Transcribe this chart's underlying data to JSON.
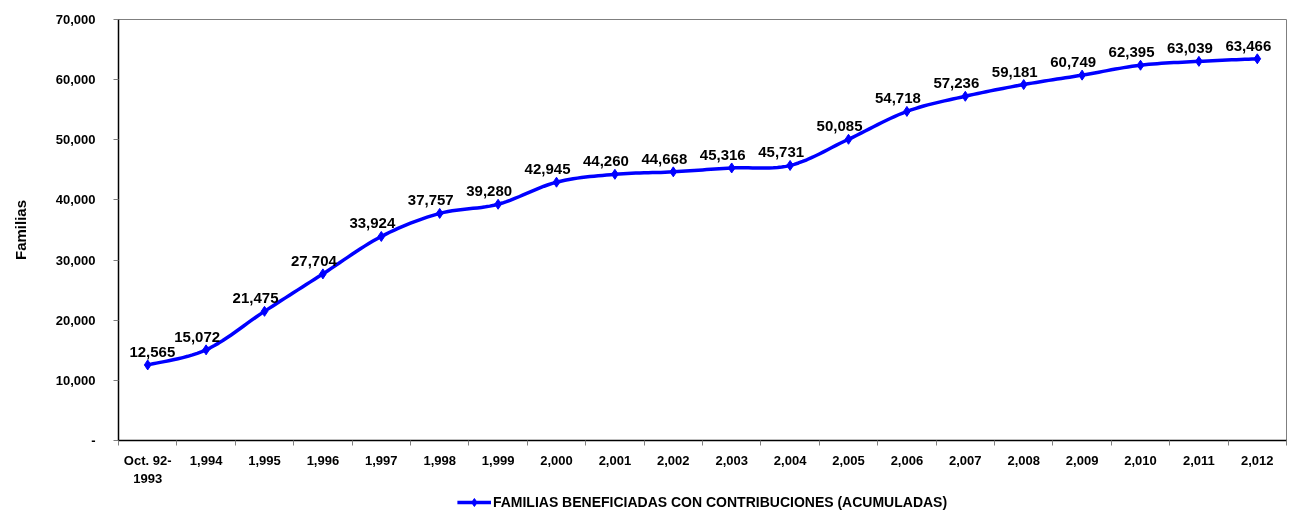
{
  "chart_data": {
    "type": "line",
    "ylabel": "Familias",
    "categories": [
      "Oct. 92-\n1993",
      "1,994",
      "1,995",
      "1,996",
      "1,997",
      "1,998",
      "1,999",
      "2,000",
      "2,001",
      "2,002",
      "2,003",
      "2,004",
      "2,005",
      "2,006",
      "2,007",
      "2,008",
      "2,009",
      "2,010",
      "2,011",
      "2,012"
    ],
    "series": [
      {
        "name": "FAMILIAS BENEFICIADAS CON CONTRIBUCIONES (ACUMULADAS)",
        "color": "#0000ff",
        "values": [
          12565,
          15072,
          21475,
          27704,
          33924,
          37757,
          39280,
          42945,
          44260,
          44668,
          45316,
          45731,
          50085,
          54718,
          57236,
          59181,
          60749,
          62395,
          63039,
          63466
        ],
        "value_labels": [
          "12,565",
          "15,072",
          "21,475",
          "27,704",
          "33,924",
          "37,757",
          "39,280",
          "42,945",
          "44,260",
          "44,668",
          "45,316",
          "45,731",
          "50,085",
          "54,718",
          "57,236",
          "59,181",
          "60,749",
          "62,395",
          "63,039",
          "63,466"
        ]
      }
    ],
    "ylim": [
      0,
      70000
    ],
    "yticks": [
      {
        "value": 0,
        "label": "-"
      },
      {
        "value": 10000,
        "label": "10,000"
      },
      {
        "value": 20000,
        "label": "20,000"
      },
      {
        "value": 30000,
        "label": "30,000"
      },
      {
        "value": 40000,
        "label": "40,000"
      },
      {
        "value": 50000,
        "label": "50,000"
      },
      {
        "value": 60000,
        "label": "60,000"
      },
      {
        "value": 70000,
        "label": "70,000"
      }
    ],
    "legend": "bottom",
    "marker": "diamond",
    "line_style": "solid",
    "grid": false
  }
}
